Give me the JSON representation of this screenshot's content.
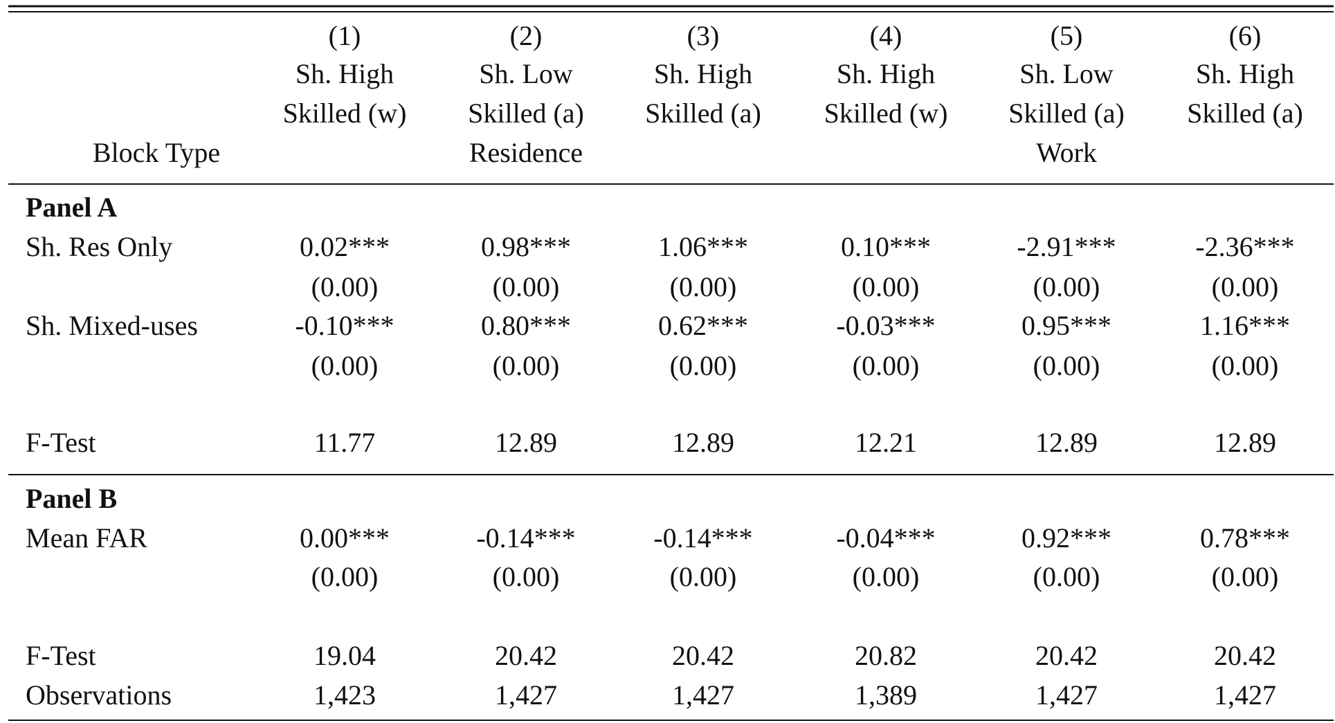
{
  "header": {
    "row_label": "Block Type",
    "columns": [
      {
        "number": "(1)",
        "title": [
          "Sh. High",
          "Skilled (w)"
        ]
      },
      {
        "number": "(2)",
        "title": [
          "Sh. Low",
          "Skilled (a)"
        ]
      },
      {
        "number": "(3)",
        "title": [
          "Sh. High",
          "Skilled (a)"
        ]
      },
      {
        "number": "(4)",
        "title": [
          "Sh. High",
          "Skilled (w)"
        ]
      },
      {
        "number": "(5)",
        "title": [
          "Sh. Low",
          "Skilled (a)"
        ]
      },
      {
        "number": "(6)",
        "title": [
          "Sh. High",
          "Skilled (a)"
        ]
      }
    ],
    "groups": [
      "Residence",
      "Work"
    ]
  },
  "panels": [
    {
      "title": "Panel A",
      "rows": [
        {
          "label": "Sh. Res Only",
          "values": [
            "0.02***",
            "0.98***",
            "1.06***",
            "0.10***",
            "-2.91***",
            "-2.36***"
          ],
          "se": [
            "(0.00)",
            "(0.00)",
            "(0.00)",
            "(0.00)",
            "(0.00)",
            "(0.00)"
          ]
        },
        {
          "label": "Sh. Mixed-uses",
          "values": [
            "-0.10***",
            "0.80***",
            "0.62***",
            "-0.03***",
            "0.95***",
            "1.16***"
          ],
          "se": [
            "(0.00)",
            "(0.00)",
            "(0.00)",
            "(0.00)",
            "(0.00)",
            "(0.00)"
          ]
        },
        {
          "label": "F-Test",
          "values": [
            "11.77",
            "12.89",
            "12.89",
            "12.21",
            "12.89",
            "12.89"
          ]
        }
      ]
    },
    {
      "title": "Panel B",
      "rows": [
        {
          "label": "Mean FAR",
          "values": [
            "0.00***",
            "-0.14***",
            "-0.14***",
            "-0.04***",
            "0.92***",
            "0.78***"
          ],
          "se": [
            "(0.00)",
            "(0.00)",
            "(0.00)",
            "(0.00)",
            "(0.00)",
            "(0.00)"
          ]
        },
        {
          "label": "F-Test",
          "values": [
            "19.04",
            "20.42",
            "20.42",
            "20.82",
            "20.42",
            "20.42"
          ]
        },
        {
          "label": "Observations",
          "values": [
            "1,423",
            "1,427",
            "1,427",
            "1,389",
            "1,427",
            "1,427"
          ]
        }
      ]
    }
  ]
}
